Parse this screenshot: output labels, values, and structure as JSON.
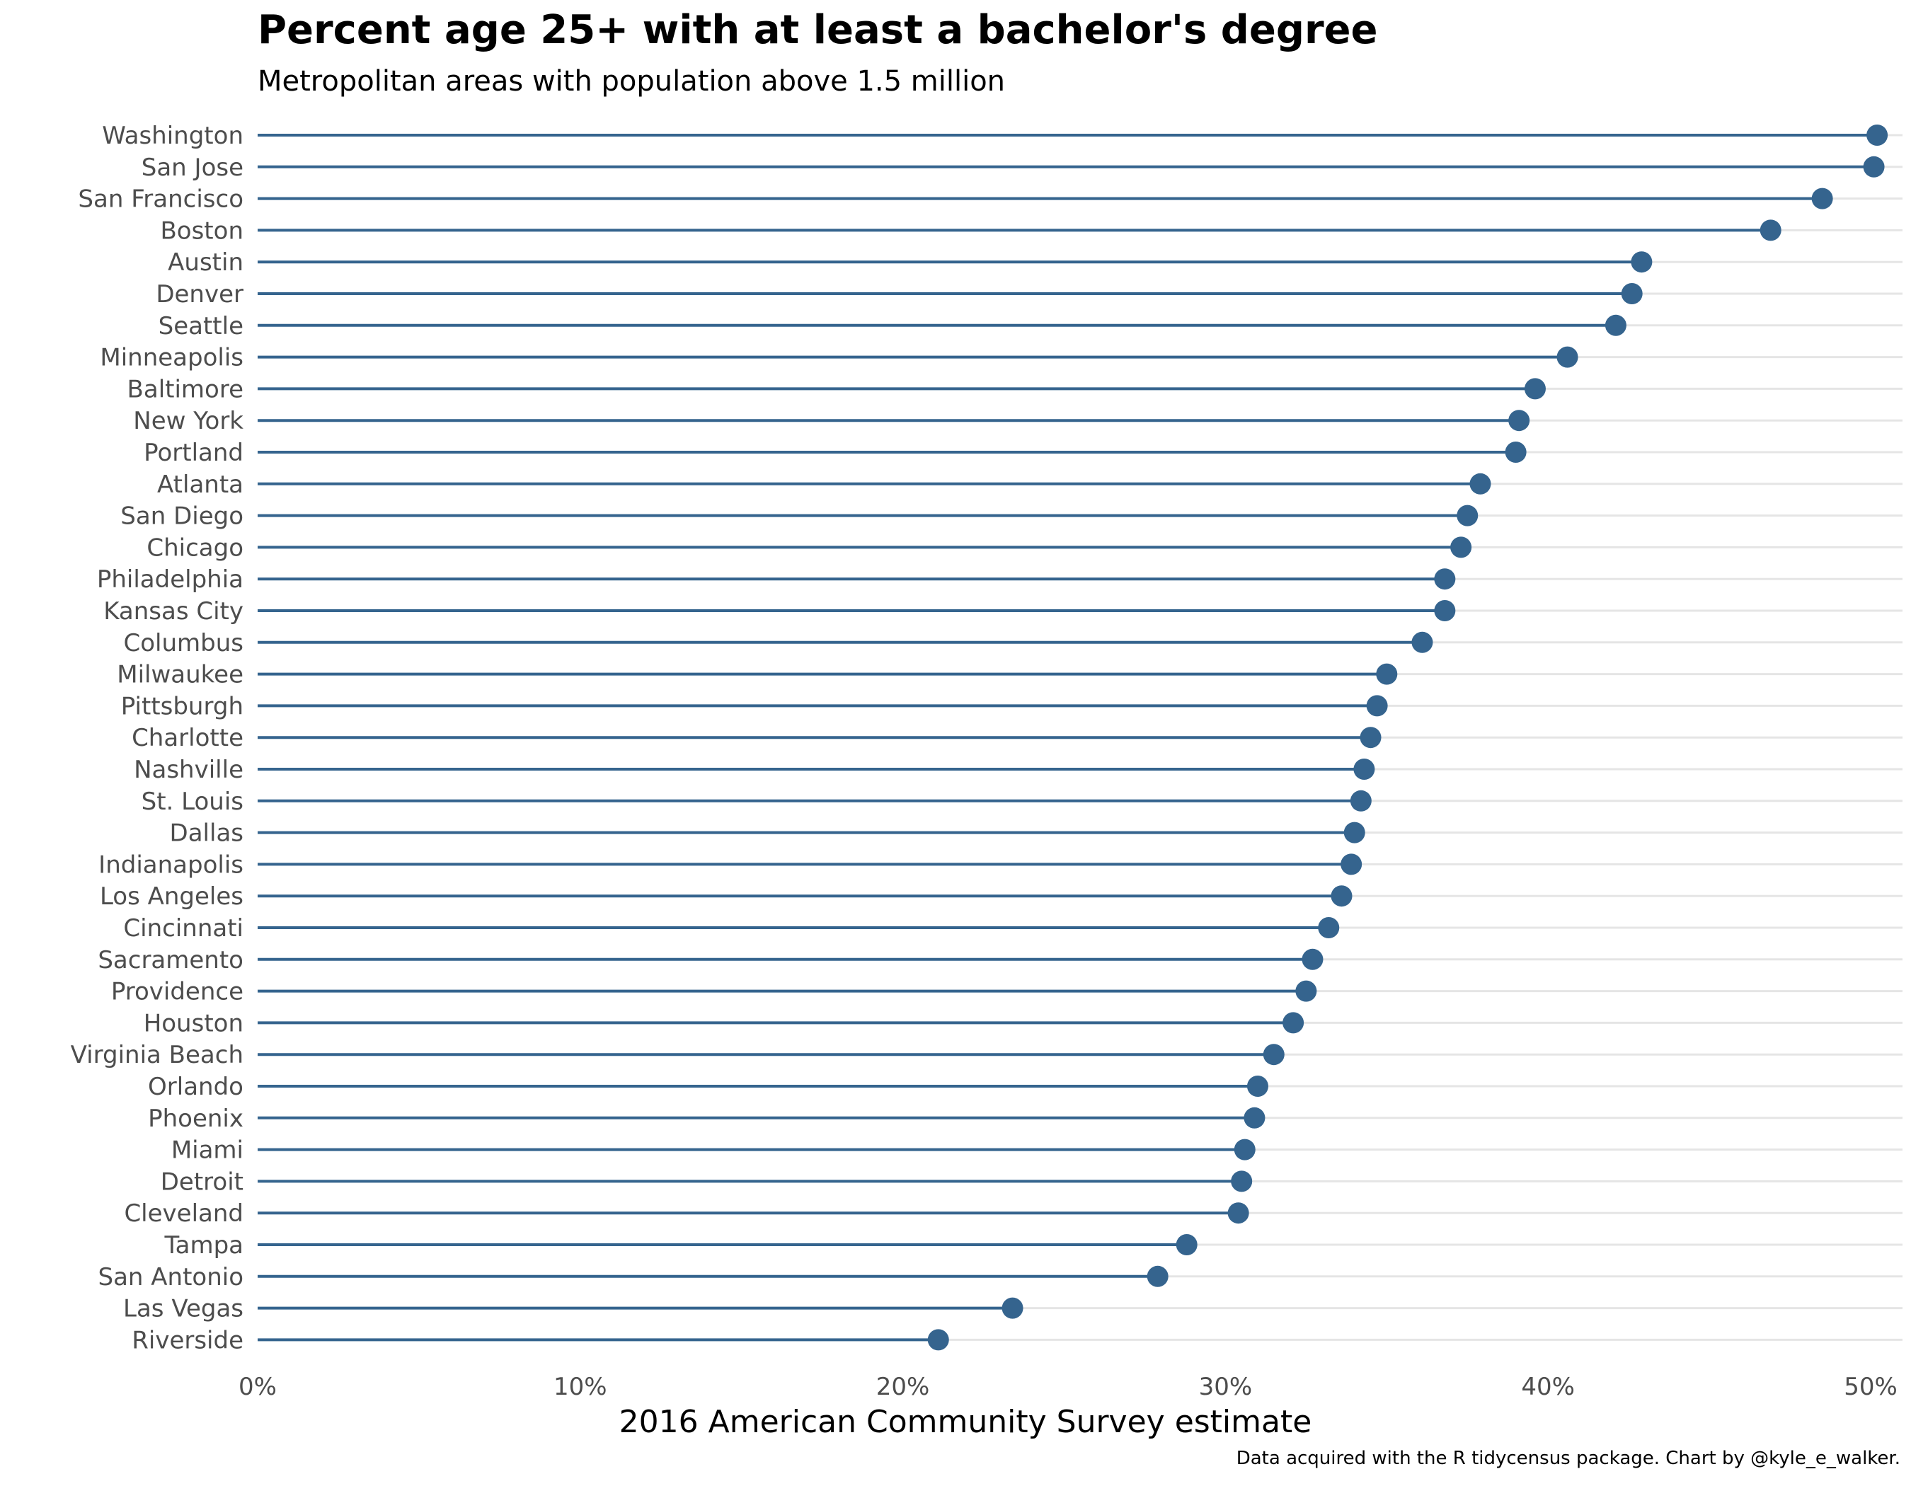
{
  "chart_data": {
    "type": "lollipop",
    "title": "Percent age 25+ with at least a bachelor's degree",
    "subtitle": "Metropolitan areas with population above 1.5 million",
    "xlabel": "2016 American Community Survey estimate",
    "ylabel": "",
    "caption": "Data acquired with the R tidycensus package. Chart by @kyle_e_walker.",
    "xlim": [
      0,
      51
    ],
    "x_ticks": [
      0,
      10,
      20,
      30,
      40,
      50
    ],
    "x_tick_labels": [
      "0%",
      "10%",
      "20%",
      "30%",
      "40%",
      "50%"
    ],
    "grid": "horizontal major lines",
    "legend": "none",
    "color": "#35648E",
    "grid_color": "#e5e5e5",
    "categories": [
      "Washington",
      "San Jose",
      "San Francisco",
      "Boston",
      "Austin",
      "Denver",
      "Seattle",
      "Minneapolis",
      "Baltimore",
      "New York",
      "Portland",
      "Atlanta",
      "San Diego",
      "Chicago",
      "Philadelphia",
      "Kansas City",
      "Columbus",
      "Milwaukee",
      "Pittsburgh",
      "Charlotte",
      "Nashville",
      "St. Louis",
      "Dallas",
      "Indianapolis",
      "Los Angeles",
      "Cincinnati",
      "Sacramento",
      "Providence",
      "Houston",
      "Virginia Beach",
      "Orlando",
      "Phoenix",
      "Miami",
      "Detroit",
      "Cleveland",
      "Tampa",
      "San Antonio",
      "Las Vegas",
      "Riverside"
    ],
    "values": [
      50.2,
      50.1,
      48.5,
      46.9,
      42.9,
      42.6,
      42.1,
      40.6,
      39.6,
      39.1,
      39.0,
      37.9,
      37.5,
      37.3,
      36.8,
      36.8,
      36.1,
      35.0,
      34.7,
      34.5,
      34.3,
      34.2,
      34.0,
      33.9,
      33.6,
      33.2,
      32.7,
      32.5,
      32.1,
      31.5,
      31.0,
      30.9,
      30.6,
      30.5,
      30.4,
      28.8,
      27.9,
      23.4,
      21.1
    ]
  }
}
